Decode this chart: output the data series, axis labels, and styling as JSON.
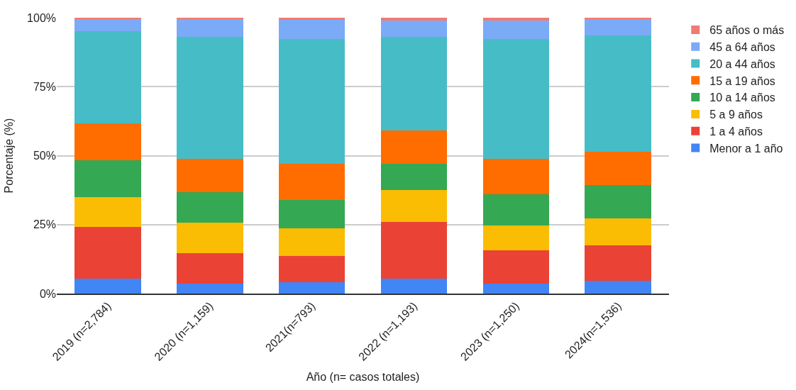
{
  "chart_data": {
    "type": "bar",
    "stacked": true,
    "xlabel": "Año (n= casos totales)",
    "ylabel": "Porcentaje (%)",
    "categories": [
      "2019 (n=2,784)",
      "2020 (n=1,159)",
      "2021(n=793)",
      "2022 (n=1,193)",
      "2023 (n=1,250)",
      "2024(n=1,536)"
    ],
    "series": [
      {
        "name": "Menor a 1 año",
        "color": "#4285f4",
        "values": [
          5.3,
          3.6,
          4.0,
          5.3,
          3.6,
          4.6
        ]
      },
      {
        "name": "1 a 4 años",
        "color": "#ea4335",
        "values": [
          18.9,
          11.1,
          9.5,
          20.6,
          12.1,
          12.9
        ]
      },
      {
        "name": "5 a 9 años",
        "color": "#fbbc04",
        "values": [
          10.7,
          10.9,
          10.2,
          11.6,
          8.9,
          9.8
        ]
      },
      {
        "name": "10 a 14 años",
        "color": "#34a853",
        "values": [
          13.4,
          11.1,
          10.2,
          9.5,
          11.3,
          12.1
        ]
      },
      {
        "name": "15 a 19 años",
        "color": "#ff6d01",
        "values": [
          13.4,
          12.1,
          13.1,
          12.2,
          12.9,
          12.1
        ]
      },
      {
        "name": "20 a 44 años",
        "color": "#46bdc6",
        "values": [
          33.5,
          44.2,
          45.2,
          33.8,
          43.4,
          42.1
        ]
      },
      {
        "name": "45 a 64 años",
        "color": "#7baaf7",
        "values": [
          4.5,
          6.7,
          7.1,
          5.9,
          6.7,
          6.0
        ]
      },
      {
        "name": "65 años o más",
        "color": "#f07b72",
        "values": [
          0.3,
          0.3,
          0.7,
          1.1,
          1.1,
          0.4
        ]
      }
    ],
    "ylim": [
      0,
      100
    ],
    "yticks": [
      {
        "value": 0,
        "label": "0%"
      },
      {
        "value": 25,
        "label": "25%"
      },
      {
        "value": 50,
        "label": "50%"
      },
      {
        "value": 75,
        "label": "75%"
      },
      {
        "value": 100,
        "label": "100%"
      }
    ],
    "grid": "y",
    "legend": "right"
  }
}
